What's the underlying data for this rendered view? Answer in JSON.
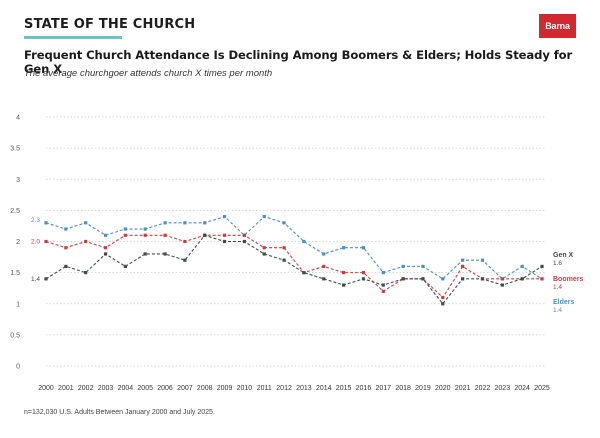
{
  "header": {
    "brand": "STATE OF THE CHURCH",
    "logo": "Barna",
    "brand_color": "#6cc3c0",
    "logo_color": "#d0292f"
  },
  "footnote": "n=132,030 U.S. Adults Between January 2000 and July 2025.",
  "chart_data": {
    "type": "line",
    "title": "Frequent Church Attendance Is Declining Among Boomers & Elders; Holds Steady for Gen X",
    "subtitle": "The average churchgoer attends church X times per month",
    "xlabel": "",
    "ylabel": "",
    "x": [
      2000,
      2001,
      2002,
      2003,
      2004,
      2005,
      2006,
      2007,
      2008,
      2009,
      2010,
      2011,
      2012,
      2013,
      2014,
      2015,
      2016,
      2017,
      2018,
      2019,
      2020,
      2021,
      2022,
      2023,
      2024,
      2025
    ],
    "ylim": [
      0,
      4
    ],
    "yticks": [
      0,
      0.5,
      1,
      1.5,
      2,
      2.5,
      3,
      3.5,
      4
    ],
    "ytick_labels": [
      "0",
      "0.5",
      "1",
      "1.5",
      "2",
      "2.5",
      "3",
      "3.5",
      "4"
    ],
    "grid": true,
    "series": [
      {
        "name": "Elders",
        "color": "#4b8fc3",
        "values": [
          2.3,
          2.2,
          2.3,
          2.1,
          2.2,
          2.2,
          2.3,
          2.3,
          2.3,
          2.4,
          2.1,
          2.4,
          2.3,
          2.0,
          1.8,
          1.9,
          1.9,
          1.5,
          1.6,
          1.6,
          1.4,
          1.7,
          1.7,
          1.4,
          1.6,
          1.4
        ],
        "start_label": "2.3",
        "end_value_label": "1.4"
      },
      {
        "name": "Boomers",
        "color": "#cf3a3f",
        "values": [
          2.0,
          1.9,
          2.0,
          1.9,
          2.1,
          2.1,
          2.1,
          2.0,
          2.1,
          2.1,
          2.1,
          1.9,
          1.9,
          1.5,
          1.6,
          1.5,
          1.5,
          1.2,
          1.4,
          1.4,
          1.1,
          1.6,
          1.4,
          1.4,
          1.4,
          1.4
        ],
        "start_label": "2.0",
        "end_value_label": "1.4"
      },
      {
        "name": "Gen X",
        "color": "#3d4d47",
        "values": [
          1.4,
          1.6,
          1.5,
          1.8,
          1.6,
          1.8,
          1.8,
          1.7,
          2.1,
          2.0,
          2.0,
          1.8,
          1.7,
          1.5,
          1.4,
          1.3,
          1.4,
          1.3,
          1.4,
          1.4,
          1.0,
          1.4,
          1.4,
          1.3,
          1.4,
          1.6
        ],
        "start_label": "1.4",
        "end_value_label": "1.6"
      }
    ]
  }
}
